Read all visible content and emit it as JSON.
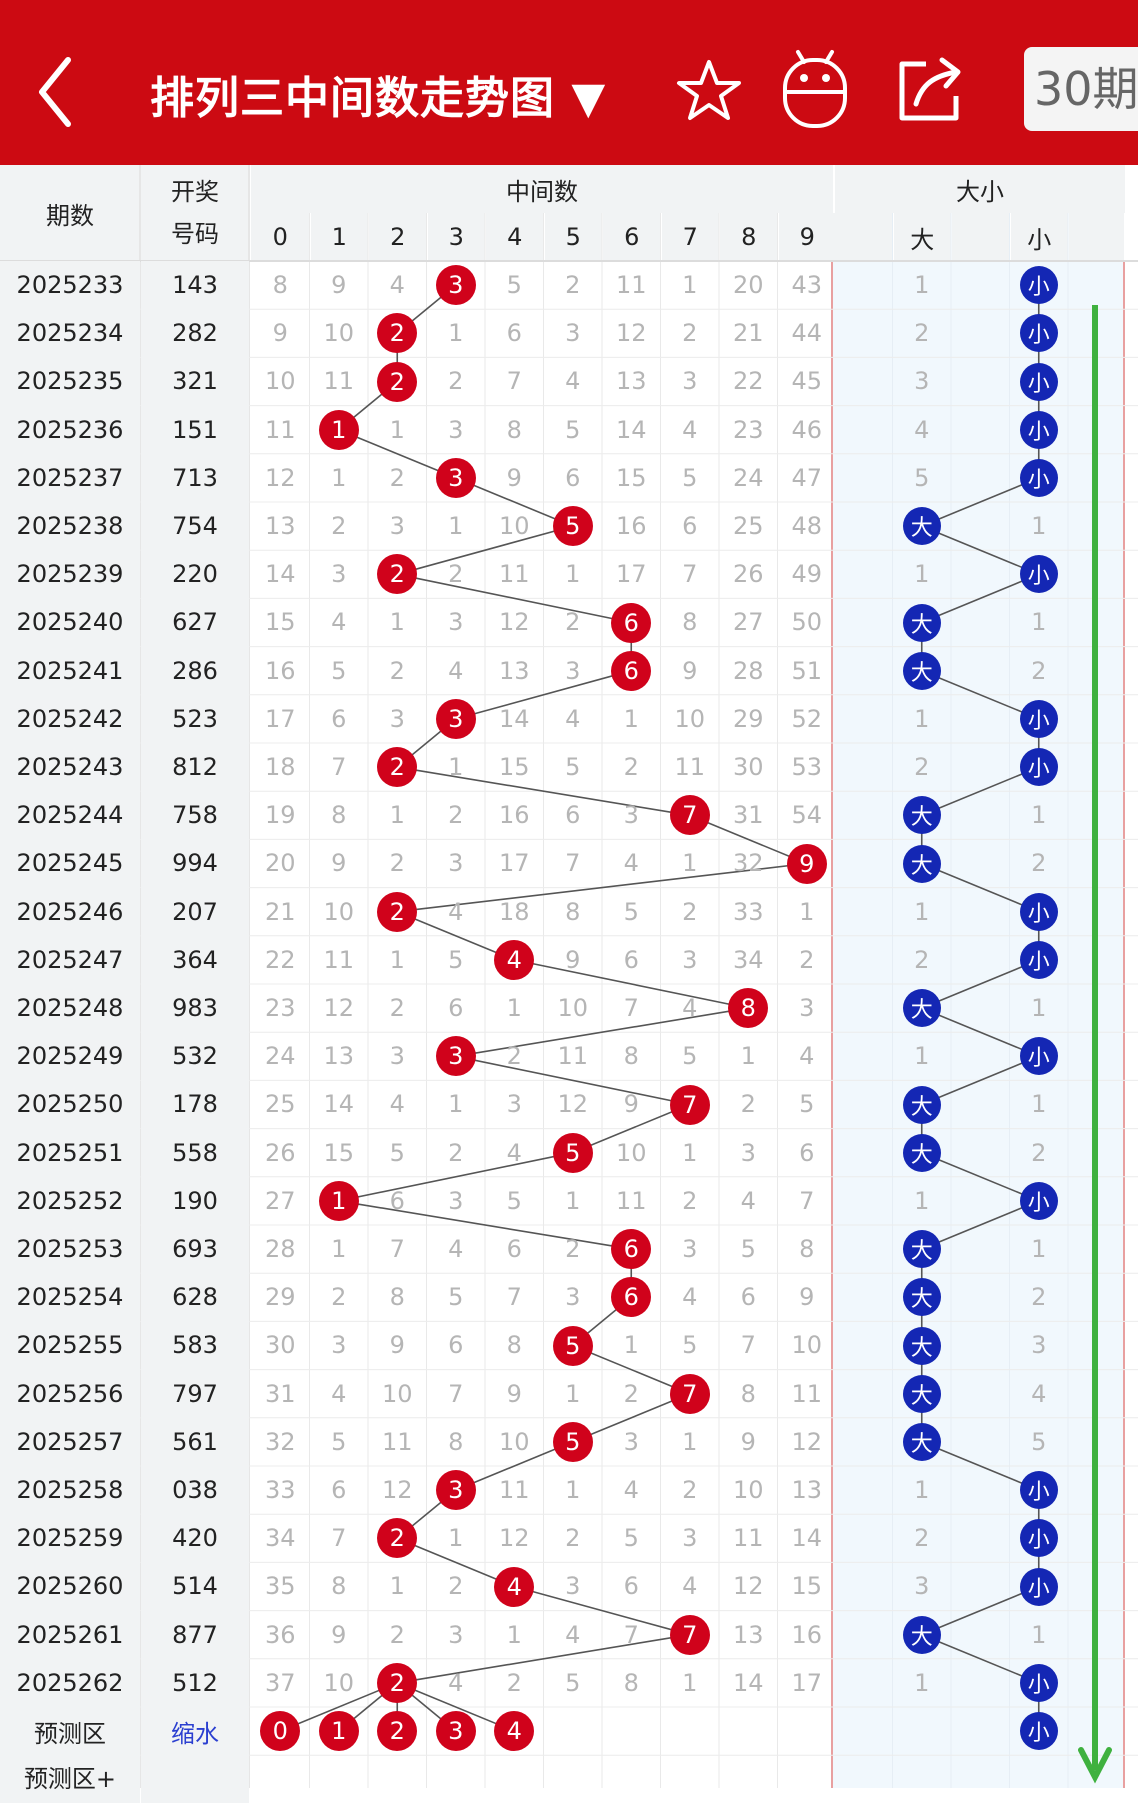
{
  "header": {
    "title": "排列三中间数走势图 ▼",
    "period_button": "30期",
    "back_icon": "back-arrow-icon",
    "icons": [
      "star-icon",
      "robot-icon",
      "share-icon"
    ],
    "bg_color": "#cc0a12"
  },
  "table": {
    "col_period": "期数",
    "col_draw": "开奖号码",
    "col_draw_line1": "开奖",
    "col_draw_line2": "号码",
    "group_middle": "中间数",
    "group_size": "大小",
    "digits": [
      "0",
      "1",
      "2",
      "3",
      "4",
      "5",
      "6",
      "7",
      "8",
      "9"
    ],
    "size_labels": [
      "大",
      "小"
    ],
    "rows": [
      {
        "period": "2025233",
        "draw": "143",
        "mid": 3,
        "miss": [
          "8",
          "9",
          "4",
          "3",
          "5",
          "2",
          "11",
          "1",
          "20",
          "43"
        ],
        "size": "小",
        "big": "1"
      },
      {
        "period": "2025234",
        "draw": "282",
        "mid": 2,
        "miss": [
          "9",
          "10",
          "2",
          "1",
          "6",
          "3",
          "12",
          "2",
          "21",
          "44"
        ],
        "size": "小",
        "big": "2"
      },
      {
        "period": "2025235",
        "draw": "321",
        "mid": 2,
        "miss": [
          "10",
          "11",
          "2",
          "2",
          "7",
          "4",
          "13",
          "3",
          "22",
          "45"
        ],
        "size": "小",
        "big": "3"
      },
      {
        "period": "2025236",
        "draw": "151",
        "mid": 1,
        "miss": [
          "11",
          "1",
          "1",
          "3",
          "8",
          "5",
          "14",
          "4",
          "23",
          "46"
        ],
        "size": "小",
        "big": "4"
      },
      {
        "period": "2025237",
        "draw": "713",
        "mid": 3,
        "miss": [
          "12",
          "1",
          "2",
          "3",
          "9",
          "6",
          "15",
          "5",
          "24",
          "47"
        ],
        "size": "小",
        "big": "5"
      },
      {
        "period": "2025238",
        "draw": "754",
        "mid": 5,
        "miss": [
          "13",
          "2",
          "3",
          "1",
          "10",
          "5",
          "16",
          "6",
          "25",
          "48"
        ],
        "size": "大",
        "small": "1"
      },
      {
        "period": "2025239",
        "draw": "220",
        "mid": 2,
        "miss": [
          "14",
          "3",
          "2",
          "2",
          "11",
          "1",
          "17",
          "7",
          "26",
          "49"
        ],
        "size": "小",
        "big": "1"
      },
      {
        "period": "2025240",
        "draw": "627",
        "mid": 6,
        "miss": [
          "15",
          "4",
          "1",
          "3",
          "12",
          "2",
          "6",
          "8",
          "27",
          "50"
        ],
        "size": "大",
        "small": "1"
      },
      {
        "period": "2025241",
        "draw": "286",
        "mid": 6,
        "miss": [
          "16",
          "5",
          "2",
          "4",
          "13",
          "3",
          "6",
          "9",
          "28",
          "51"
        ],
        "size": "大",
        "small": "2"
      },
      {
        "period": "2025242",
        "draw": "523",
        "mid": 3,
        "miss": [
          "17",
          "6",
          "3",
          "3",
          "14",
          "4",
          "1",
          "10",
          "29",
          "52"
        ],
        "size": "小",
        "big": "1"
      },
      {
        "period": "2025243",
        "draw": "812",
        "mid": 2,
        "miss": [
          "18",
          "7",
          "2",
          "1",
          "15",
          "5",
          "2",
          "11",
          "30",
          "53"
        ],
        "size": "小",
        "big": "2"
      },
      {
        "period": "2025244",
        "draw": "758",
        "mid": 7,
        "miss": [
          "19",
          "8",
          "1",
          "2",
          "16",
          "6",
          "3",
          "7",
          "31",
          "54"
        ],
        "size": "大",
        "small": "1"
      },
      {
        "period": "2025245",
        "draw": "994",
        "mid": 9,
        "miss": [
          "20",
          "9",
          "2",
          "3",
          "17",
          "7",
          "4",
          "1",
          "32",
          "9"
        ],
        "size": "大",
        "small": "2"
      },
      {
        "period": "2025246",
        "draw": "207",
        "mid": 2,
        "miss": [
          "21",
          "10",
          "2",
          "4",
          "18",
          "8",
          "5",
          "2",
          "33",
          "1"
        ],
        "size": "小",
        "big": "1"
      },
      {
        "period": "2025247",
        "draw": "364",
        "mid": 4,
        "miss": [
          "22",
          "11",
          "1",
          "5",
          "4",
          "9",
          "6",
          "3",
          "34",
          "2"
        ],
        "size": "小",
        "big": "2"
      },
      {
        "period": "2025248",
        "draw": "983",
        "mid": 8,
        "miss": [
          "23",
          "12",
          "2",
          "6",
          "1",
          "10",
          "7",
          "4",
          "8",
          "3"
        ],
        "size": "大",
        "small": "1"
      },
      {
        "period": "2025249",
        "draw": "532",
        "mid": 3,
        "miss": [
          "24",
          "13",
          "3",
          "3",
          "2",
          "11",
          "8",
          "5",
          "1",
          "4"
        ],
        "size": "小",
        "big": "1"
      },
      {
        "period": "2025250",
        "draw": "178",
        "mid": 7,
        "miss": [
          "25",
          "14",
          "4",
          "1",
          "3",
          "12",
          "9",
          "7",
          "2",
          "5"
        ],
        "size": "大",
        "small": "1"
      },
      {
        "period": "2025251",
        "draw": "558",
        "mid": 5,
        "miss": [
          "26",
          "15",
          "5",
          "2",
          "4",
          "5",
          "10",
          "1",
          "3",
          "6"
        ],
        "size": "大",
        "small": "2"
      },
      {
        "period": "2025252",
        "draw": "190",
        "mid": 1,
        "miss": [
          "27",
          "1",
          "6",
          "3",
          "5",
          "1",
          "11",
          "2",
          "4",
          "7"
        ],
        "size": "小",
        "big": "1"
      },
      {
        "period": "2025253",
        "draw": "693",
        "mid": 6,
        "miss": [
          "28",
          "1",
          "7",
          "4",
          "6",
          "2",
          "6",
          "3",
          "5",
          "8"
        ],
        "size": "大",
        "small": "1"
      },
      {
        "period": "2025254",
        "draw": "628",
        "mid": 6,
        "miss": [
          "29",
          "2",
          "8",
          "5",
          "7",
          "3",
          "6",
          "4",
          "6",
          "9"
        ],
        "size": "大",
        "small": "2"
      },
      {
        "period": "2025255",
        "draw": "583",
        "mid": 5,
        "miss": [
          "30",
          "3",
          "9",
          "6",
          "8",
          "5",
          "1",
          "5",
          "7",
          "10"
        ],
        "size": "大",
        "small": "3"
      },
      {
        "period": "2025256",
        "draw": "797",
        "mid": 7,
        "miss": [
          "31",
          "4",
          "10",
          "7",
          "9",
          "1",
          "2",
          "7",
          "8",
          "11"
        ],
        "size": "大",
        "small": "4"
      },
      {
        "period": "2025257",
        "draw": "561",
        "mid": 5,
        "miss": [
          "32",
          "5",
          "11",
          "8",
          "10",
          "5",
          "3",
          "1",
          "9",
          "12"
        ],
        "size": "大",
        "small": "5"
      },
      {
        "period": "2025258",
        "draw": "038",
        "mid": 3,
        "miss": [
          "33",
          "6",
          "12",
          "3",
          "11",
          "1",
          "4",
          "2",
          "10",
          "13"
        ],
        "size": "小",
        "big": "1"
      },
      {
        "period": "2025259",
        "draw": "420",
        "mid": 2,
        "miss": [
          "34",
          "7",
          "2",
          "1",
          "12",
          "2",
          "5",
          "3",
          "11",
          "14"
        ],
        "size": "小",
        "big": "2"
      },
      {
        "period": "2025260",
        "draw": "514",
        "mid": 4,
        "miss": [
          "35",
          "8",
          "1",
          "2",
          "4",
          "3",
          "6",
          "4",
          "12",
          "15"
        ],
        "size": "小",
        "big": "3"
      },
      {
        "period": "2025261",
        "draw": "877",
        "mid": 7,
        "miss": [
          "36",
          "9",
          "2",
          "3",
          "1",
          "4",
          "7",
          "7",
          "13",
          "16"
        ],
        "size": "大",
        "small": "1"
      },
      {
        "period": "2025262",
        "draw": "512",
        "mid": 2,
        "miss": [
          "37",
          "10",
          "2",
          "4",
          "2",
          "5",
          "8",
          "1",
          "14",
          "17"
        ],
        "size": "小",
        "big": "1"
      }
    ],
    "predict": {
      "label": "预测区",
      "link": "缩水",
      "balls": [
        "0",
        "1",
        "2",
        "3",
        "4"
      ],
      "size": "小",
      "next_label": "预测区+"
    }
  },
  "colors": {
    "red": "#d0021b",
    "blue": "#1427b4",
    "arrow": "#3fb13f"
  }
}
